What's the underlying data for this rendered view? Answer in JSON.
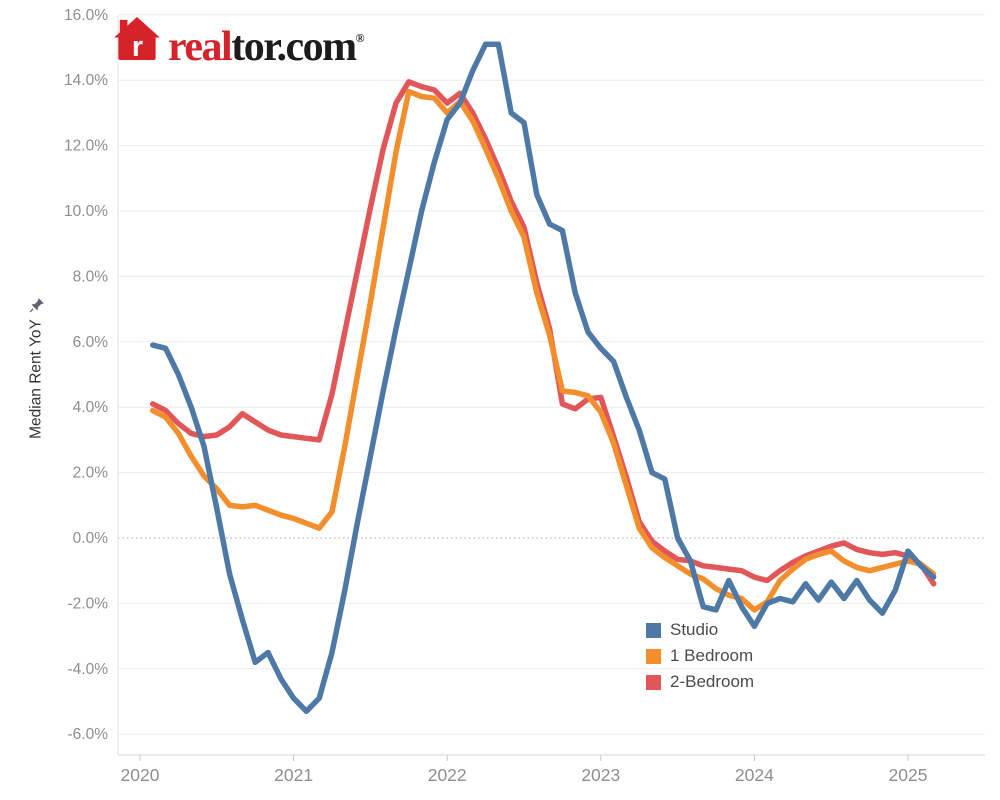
{
  "logo": {
    "icon_letter": "r",
    "brand_prefix": "real",
    "brand_suffix": "tor.com",
    "registered_mark": "®",
    "brand_red": "#d6232a",
    "brand_black": "#1c1c1e"
  },
  "legend": {
    "items": [
      "Studio",
      "1 Bedroom",
      "2-Bedroom"
    ]
  },
  "chart_data": {
    "type": "line",
    "title": "",
    "xlabel": "",
    "ylabel": "Median Rent YoY",
    "ylim": [
      -6,
      16
    ],
    "grid": true,
    "zero_line": "dotted",
    "legend_position": "inside-bottom-right",
    "y_ticks": [
      {
        "v": 16,
        "label": "16.0%"
      },
      {
        "v": 14,
        "label": "14.0%"
      },
      {
        "v": 12,
        "label": "12.0%"
      },
      {
        "v": 10,
        "label": "10.0%"
      },
      {
        "v": 8,
        "label": "8.0%"
      },
      {
        "v": 6,
        "label": "6.0%"
      },
      {
        "v": 4,
        "label": "4.0%"
      },
      {
        "v": 2,
        "label": "2.0%"
      },
      {
        "v": 0,
        "label": "0.0%"
      },
      {
        "v": -2,
        "label": "-2.0%"
      },
      {
        "v": -4,
        "label": "-4.0%"
      },
      {
        "v": -6,
        "label": "-6.0%"
      }
    ],
    "x_ticks": [
      "2020",
      "2021",
      "2022",
      "2023",
      "2024",
      "2025"
    ],
    "x": [
      "2020-02",
      "2020-03",
      "2020-04",
      "2020-05",
      "2020-06",
      "2020-07",
      "2020-08",
      "2020-09",
      "2020-10",
      "2020-11",
      "2020-12",
      "2021-01",
      "2021-02",
      "2021-03",
      "2021-04",
      "2021-05",
      "2021-06",
      "2021-07",
      "2021-08",
      "2021-09",
      "2021-10",
      "2021-11",
      "2021-12",
      "2022-01",
      "2022-02",
      "2022-03",
      "2022-04",
      "2022-05",
      "2022-06",
      "2022-07",
      "2022-08",
      "2022-09",
      "2022-10",
      "2022-11",
      "2022-12",
      "2023-01",
      "2023-02",
      "2023-03",
      "2023-04",
      "2023-05",
      "2023-06",
      "2023-07",
      "2023-08",
      "2023-09",
      "2023-10",
      "2023-11",
      "2023-12",
      "2024-01",
      "2024-02",
      "2024-03",
      "2024-04",
      "2024-05",
      "2024-06",
      "2024-07",
      "2024-08",
      "2024-09",
      "2024-10",
      "2024-11",
      "2024-12",
      "2025-01",
      "2025-02",
      "2025-03"
    ],
    "series": [
      {
        "name": "Studio",
        "color": "#4e79a7",
        "values": [
          5.9,
          5.8,
          5.0,
          4.0,
          2.8,
          0.9,
          -1.1,
          -2.5,
          -3.8,
          -3.5,
          -4.3,
          -4.9,
          -5.3,
          -4.9,
          -3.5,
          -1.6,
          0.5,
          2.5,
          4.5,
          6.4,
          8.2,
          10.0,
          11.5,
          12.8,
          13.3,
          14.3,
          15.1,
          15.1,
          13.0,
          12.7,
          10.5,
          9.6,
          9.4,
          7.5,
          6.3,
          5.8,
          5.4,
          4.3,
          3.3,
          2.0,
          1.8,
          0.0,
          -0.7,
          -2.1,
          -2.2,
          -1.3,
          -2.1,
          -2.7,
          -2.0,
          -1.85,
          -1.95,
          -1.4,
          -1.9,
          -1.35,
          -1.85,
          -1.3,
          -1.9,
          -2.3,
          -1.6,
          -0.4,
          -0.85,
          -1.2
        ]
      },
      {
        "name": "1 Bedroom",
        "color": "#f28e2b",
        "values": [
          3.9,
          3.7,
          3.2,
          2.5,
          1.9,
          1.5,
          1.0,
          0.95,
          1.0,
          0.85,
          0.7,
          0.6,
          0.45,
          0.3,
          0.8,
          2.8,
          5.0,
          7.2,
          9.5,
          11.8,
          13.65,
          13.5,
          13.45,
          13.0,
          13.35,
          12.75,
          11.9,
          11.0,
          10.0,
          9.2,
          7.5,
          6.2,
          4.5,
          4.45,
          4.35,
          3.85,
          2.9,
          1.6,
          0.3,
          -0.3,
          -0.6,
          -0.85,
          -1.1,
          -1.25,
          -1.55,
          -1.75,
          -1.85,
          -2.2,
          -1.95,
          -1.3,
          -0.95,
          -0.65,
          -0.5,
          -0.4,
          -0.7,
          -0.9,
          -1.0,
          -0.9,
          -0.8,
          -0.7,
          -0.8,
          -1.1
        ]
      },
      {
        "name": "2-Bedroom",
        "color": "#e15759",
        "values": [
          4.1,
          3.9,
          3.5,
          3.2,
          3.1,
          3.15,
          3.4,
          3.8,
          3.55,
          3.3,
          3.15,
          3.1,
          3.05,
          3.0,
          4.4,
          6.3,
          8.2,
          10.1,
          11.9,
          13.3,
          13.95,
          13.8,
          13.7,
          13.3,
          13.6,
          13.0,
          12.2,
          11.3,
          10.3,
          9.5,
          7.8,
          6.4,
          4.1,
          3.95,
          4.25,
          4.3,
          3.1,
          1.85,
          0.5,
          -0.1,
          -0.4,
          -0.65,
          -0.7,
          -0.85,
          -0.9,
          -0.95,
          -1.0,
          -1.2,
          -1.3,
          -1.0,
          -0.75,
          -0.55,
          -0.4,
          -0.25,
          -0.15,
          -0.35,
          -0.45,
          -0.5,
          -0.45,
          -0.55,
          -0.8,
          -1.4
        ]
      }
    ]
  }
}
